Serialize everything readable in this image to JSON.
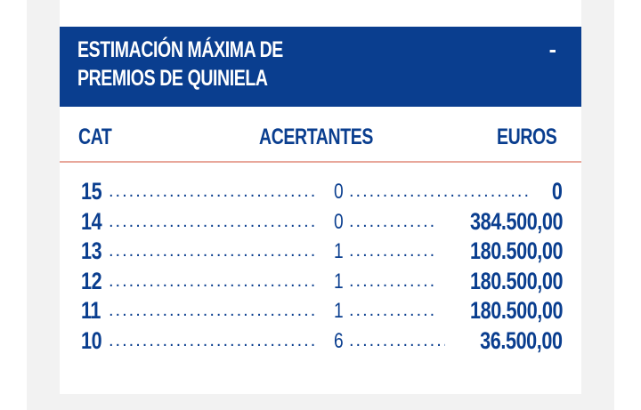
{
  "header": {
    "title_line1": "ESTIMACIÓN MÁXIMA DE",
    "title_line2": "PREMIOS DE QUINIELA",
    "dash": "-"
  },
  "columns": {
    "cat": "CAT",
    "acertantes": "ACERTANTES",
    "euros": "EUROS"
  },
  "rows": [
    {
      "cat": "15",
      "acertantes": "0",
      "euros": "0"
    },
    {
      "cat": "14",
      "acertantes": "0",
      "euros": "384.500,00"
    },
    {
      "cat": "13",
      "acertantes": "1",
      "euros": "180.500,00"
    },
    {
      "cat": "12",
      "acertantes": "1",
      "euros": "180.500,00"
    },
    {
      "cat": "11",
      "acertantes": "1",
      "euros": "180.500,00"
    },
    {
      "cat": "10",
      "acertantes": "6",
      "euros": "36.500,00"
    }
  ]
}
